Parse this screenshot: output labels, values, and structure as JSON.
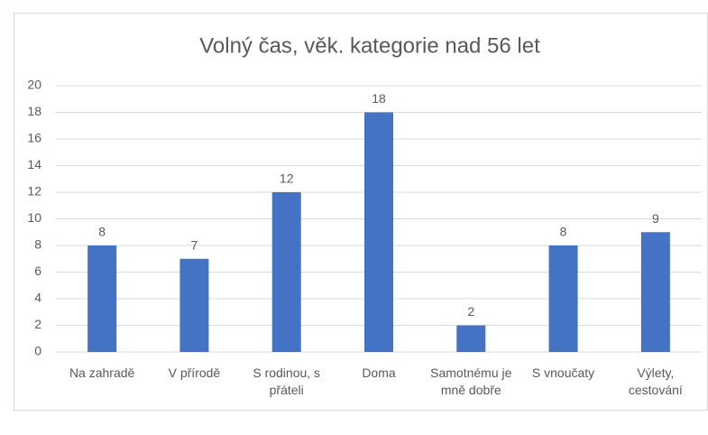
{
  "chart_data": {
    "type": "bar",
    "title": "Volný čas, věk. kategorie nad 56 let",
    "categories": [
      "Na zahradě",
      "V přírodě",
      "S rodinou, s přáteli",
      "Doma",
      "Samotnému je mně dobře",
      "S vnoučaty",
      "Výlety, cestování"
    ],
    "values": [
      8,
      7,
      12,
      18,
      2,
      8,
      9
    ],
    "color": "#4472c4",
    "ylim": [
      0,
      20
    ],
    "yticks": [
      0,
      2,
      4,
      6,
      8,
      10,
      12,
      14,
      16,
      18,
      20
    ],
    "grid": true,
    "data_labels": true
  }
}
